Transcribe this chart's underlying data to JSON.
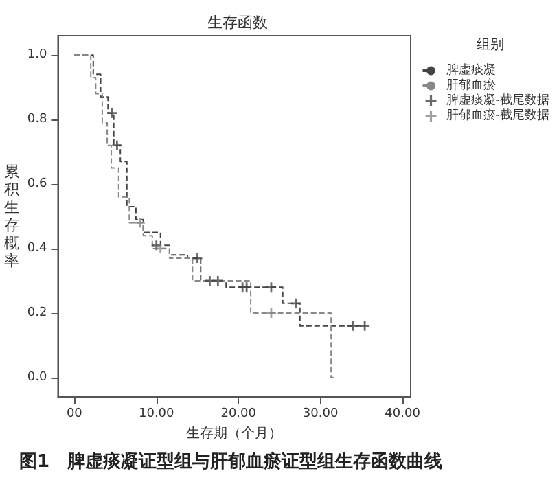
{
  "chart_data": {
    "type": "step",
    "title": "生存函数",
    "xlabel": "生存期（个月）",
    "ylabel": "累积生存概率",
    "legend_title": "组别",
    "annotations": [
      "图1　脾虚痰凝证型组与肝郁血瘀证型组生存函数曲线"
    ],
    "xlim": [
      -2,
      41
    ],
    "ylim": [
      -0.06,
      1.06
    ],
    "xticks": [
      {
        "value": 0,
        "label": "00"
      },
      {
        "value": 10,
        "label": "10.00"
      },
      {
        "value": 20,
        "label": "20.00"
      },
      {
        "value": 30,
        "label": "30.00"
      },
      {
        "value": 40,
        "label": "40.00"
      }
    ],
    "yticks": [
      {
        "value": 0,
        "label": "0.0"
      },
      {
        "value": 0.2,
        "label": "0.2"
      },
      {
        "value": 0.4,
        "label": "0.4"
      },
      {
        "value": 0.6,
        "label": "0.6"
      },
      {
        "value": 0.8,
        "label": "0.8"
      },
      {
        "value": 1,
        "label": "1.0"
      }
    ],
    "grid": false,
    "legend": "right",
    "line_style": "dashed",
    "series": [
      {
        "name": "脾虚痰凝",
        "marker": "none",
        "color": "#444444",
        "x": [
          0,
          2.3,
          3.2,
          4.1,
          4.8,
          5.6,
          6.4,
          7.5,
          8.4,
          10.5,
          11.6,
          13.8,
          15.4,
          18.5,
          25.4,
          27.5,
          35.4
        ],
        "values": [
          1,
          0.94,
          0.87,
          0.82,
          0.72,
          0.67,
          0.53,
          0.49,
          0.45,
          0.41,
          0.38,
          0.37,
          0.3,
          0.28,
          0.23,
          0.16,
          0.16
        ]
      },
      {
        "name": "肝郁血瘀",
        "marker": "none",
        "color": "#888888",
        "x": [
          0,
          2.0,
          2.6,
          3.4,
          4.0,
          4.5,
          5.4,
          6.7,
          8.4,
          9.5,
          11.6,
          14.4,
          21.5,
          31.3,
          31.6
        ],
        "values": [
          1,
          0.93,
          0.88,
          0.79,
          0.72,
          0.65,
          0.56,
          0.48,
          0.44,
          0.4,
          0.37,
          0.3,
          0.2,
          0,
          0
        ]
      },
      {
        "name": "脾虚痰凝-截尾数据",
        "type": "scatter",
        "marker": "cross",
        "color": "#444444",
        "x": [
          4.6,
          5.2,
          10,
          15,
          16.5,
          17.5,
          20.5,
          21,
          24,
          27,
          34,
          35.4
        ],
        "values": [
          0.82,
          0.72,
          0.41,
          0.37,
          0.3,
          0.3,
          0.28,
          0.28,
          0.28,
          0.23,
          0.16,
          0.16
        ]
      },
      {
        "name": "肝郁血瘀-截尾数据",
        "type": "scatter",
        "marker": "cross",
        "color": "#888888",
        "x": [
          8,
          10.5,
          24
        ],
        "values": [
          0.48,
          0.4,
          0.2
        ]
      }
    ]
  }
}
